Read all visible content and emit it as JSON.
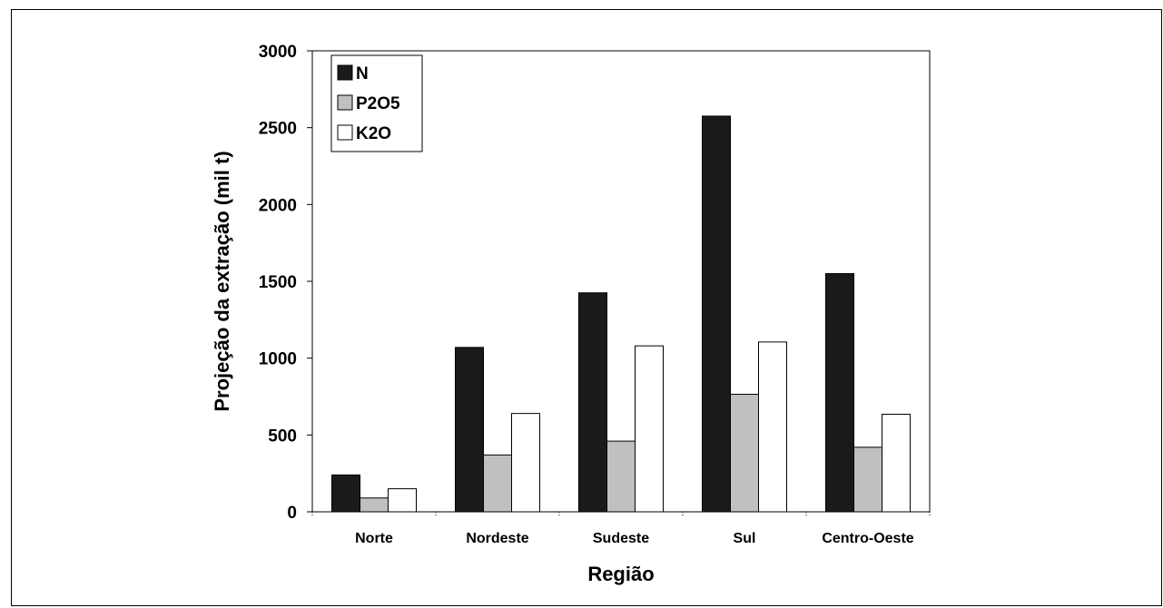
{
  "chart_data": {
    "type": "bar",
    "title": "",
    "xlabel": "Região",
    "ylabel": "Projeção da extração (mil t)",
    "categories": [
      "Norte",
      "Nordeste",
      "Sudeste",
      "Sul",
      "Centro-Oeste"
    ],
    "series": [
      {
        "name": "N",
        "values": [
          240,
          1070,
          1425,
          2575,
          1550
        ],
        "color": "#1a1a1a"
      },
      {
        "name": "P2O5",
        "values": [
          90,
          370,
          460,
          765,
          420
        ],
        "color": "#c0c0c0"
      },
      {
        "name": "K2O",
        "values": [
          150,
          640,
          1080,
          1105,
          635
        ],
        "color": "#ffffff"
      }
    ],
    "ylim": [
      0,
      3000
    ],
    "yticks": [
      "0",
      "500",
      "1000",
      "1500",
      "2000",
      "2500",
      "3000"
    ],
    "legend": "top-left",
    "grid": false
  }
}
